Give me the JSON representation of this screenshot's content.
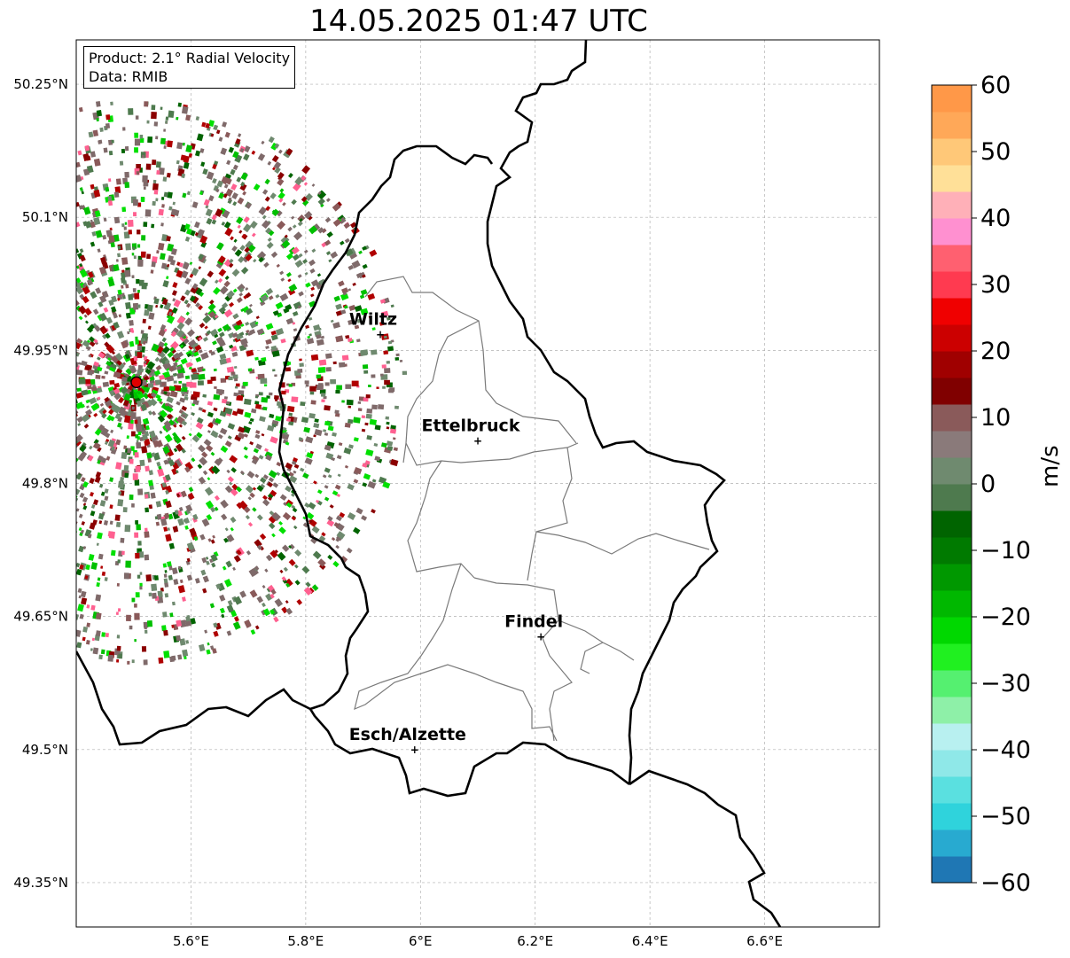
{
  "title": "14.05.2025 01:47 UTC",
  "infobox": {
    "product": "Product: 2.1° Radial Velocity",
    "source": "Data: RMIB"
  },
  "map": {
    "lon_range": [
      5.4,
      6.8
    ],
    "lat_range": [
      49.3,
      50.3
    ],
    "grid": true,
    "lon_ticks": [
      {
        "value": 5.6,
        "label": "5.6°E"
      },
      {
        "value": 5.8,
        "label": "5.8°E"
      },
      {
        "value": 6.0,
        "label": "6°E"
      },
      {
        "value": 6.2,
        "label": "6.2°E"
      },
      {
        "value": 6.4,
        "label": "6.4°E"
      },
      {
        "value": 6.6,
        "label": "6.6°E"
      }
    ],
    "lat_ticks": [
      {
        "value": 50.25,
        "label": "50.25°N"
      },
      {
        "value": 50.1,
        "label": "50.1°N"
      },
      {
        "value": 49.95,
        "label": "49.95°N"
      },
      {
        "value": 49.8,
        "label": "49.8°N"
      },
      {
        "value": 49.65,
        "label": "49.65°N"
      },
      {
        "value": 49.5,
        "label": "49.5°N"
      },
      {
        "value": 49.35,
        "label": "49.35°N"
      }
    ],
    "cities": [
      {
        "name": "Wiltz",
        "lon": 5.93,
        "lat": 49.968
      },
      {
        "name": "Ettelbruck",
        "lon": 6.1,
        "lat": 49.848
      },
      {
        "name": "Findel",
        "lon": 6.21,
        "lat": 49.627
      },
      {
        "name": "Esch/Alzette",
        "lon": 5.99,
        "lat": 49.5
      }
    ],
    "radar_site": {
      "lon": 5.505,
      "lat": 49.914,
      "color": "#e00000"
    }
  },
  "colorbar": {
    "label": "m/s",
    "min": -60,
    "max": 60,
    "ticks": [
      {
        "value": 60,
        "label": "60"
      },
      {
        "value": 50,
        "label": "50"
      },
      {
        "value": 40,
        "label": "40"
      },
      {
        "value": 30,
        "label": "30"
      },
      {
        "value": 20,
        "label": "20"
      },
      {
        "value": 10,
        "label": "10"
      },
      {
        "value": 0,
        "label": "0"
      },
      {
        "value": -10,
        "label": "−10"
      },
      {
        "value": -20,
        "label": "−20"
      },
      {
        "value": -30,
        "label": "−30"
      },
      {
        "value": -40,
        "label": "−40"
      },
      {
        "value": -50,
        "label": "−50"
      },
      {
        "value": -60,
        "label": "−60"
      }
    ],
    "colors": [
      "#1f77b4",
      "#28aad0",
      "#2fd3dc",
      "#5ae0e0",
      "#8fe8e8",
      "#b8f0f0",
      "#8ef0a8",
      "#55f070",
      "#20f020",
      "#00d800",
      "#00b800",
      "#009800",
      "#007a00",
      "#006400",
      "#4e7a4e",
      "#6f8a6f",
      "#8a7a7a",
      "#8a5a5a",
      "#800000",
      "#a00000",
      "#cc0000",
      "#f00000",
      "#ff3a50",
      "#ff6070",
      "#ff90d0",
      "#ffb0b8",
      "#ffe098",
      "#ffc878",
      "#ffa858",
      "#ff9848"
    ]
  }
}
